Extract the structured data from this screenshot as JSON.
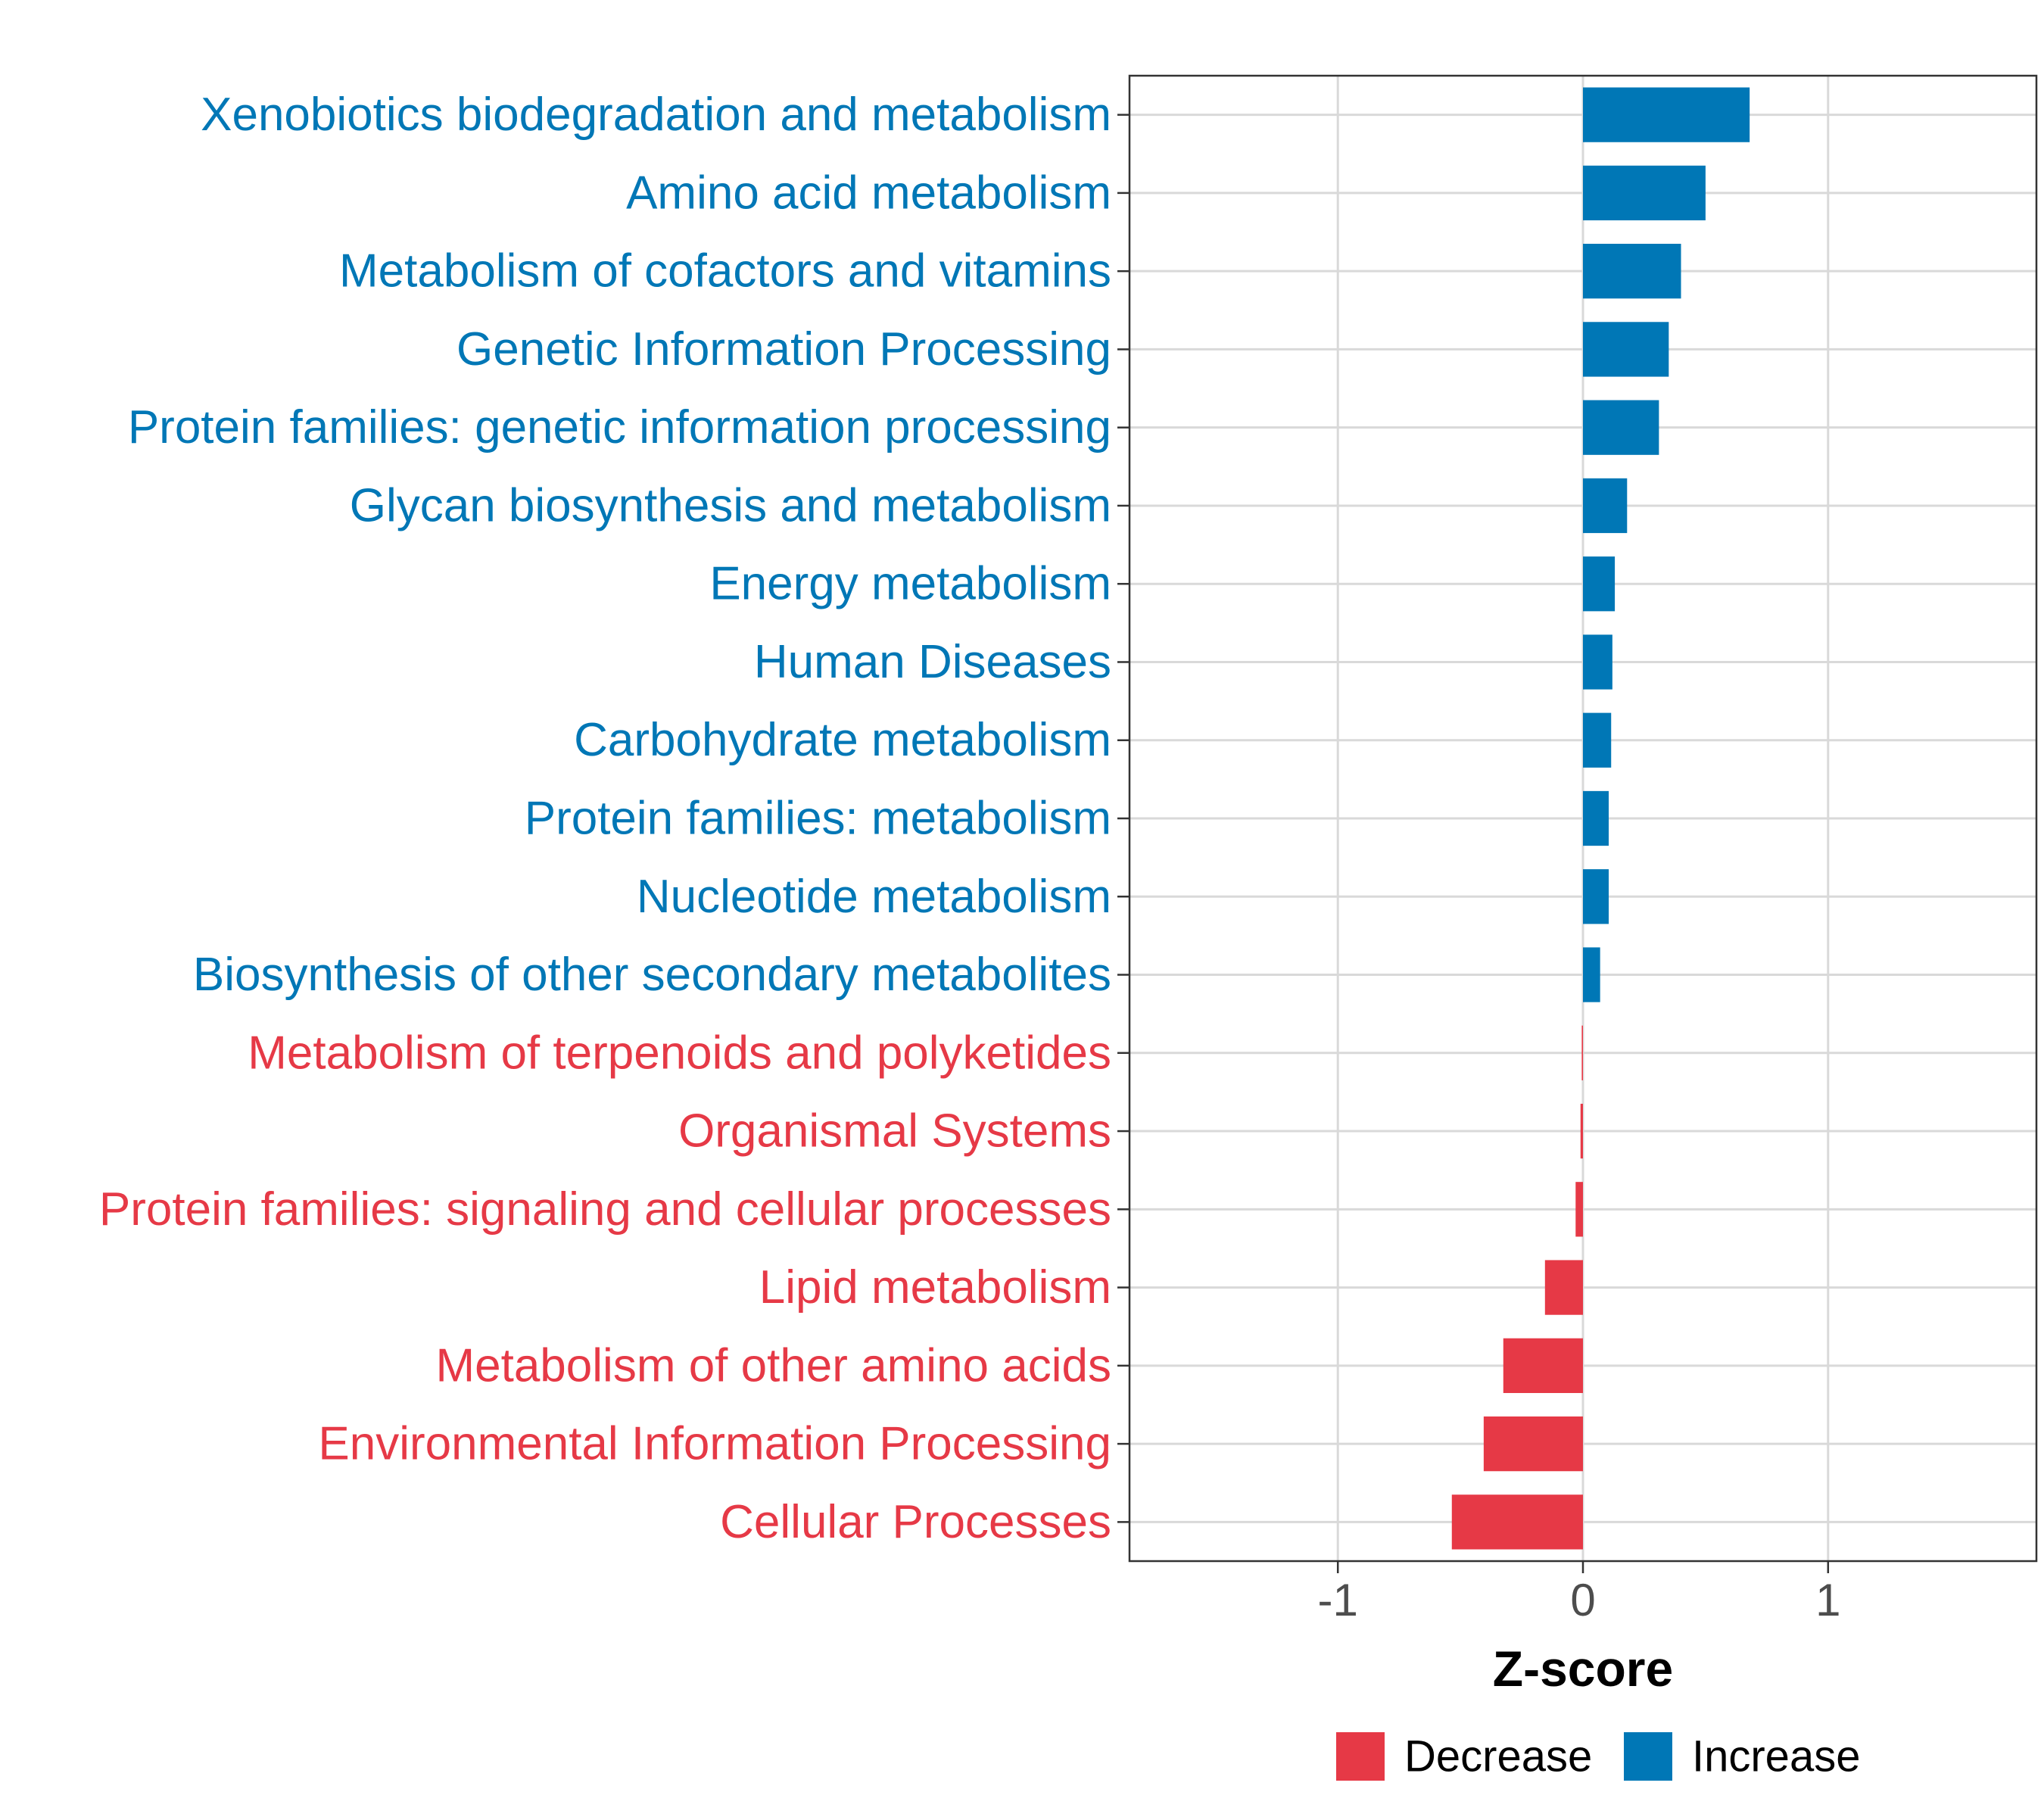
{
  "chart_data": {
    "type": "bar",
    "orientation": "horizontal",
    "title": "",
    "xlabel": "Z-score",
    "ylabel": "",
    "xlim": [
      -1.85,
      1.85
    ],
    "xticks": [
      -1,
      0,
      1
    ],
    "xtick_labels": [
      "-1",
      "0",
      "1"
    ],
    "grid": true,
    "legend_position": "bottom",
    "colors": {
      "Decrease": "#E63946",
      "Increase": "#0077B6"
    },
    "legend": [
      {
        "key": "Decrease",
        "label": "Decrease"
      },
      {
        "key": "Increase",
        "label": "Increase"
      }
    ],
    "categories": [
      "Xenobiotics biodegradation and metabolism",
      "Amino acid metabolism",
      "Metabolism of cofactors and vitamins",
      "Genetic Information Processing",
      "Protein families: genetic information processing",
      "Glycan biosynthesis and metabolism",
      "Energy metabolism",
      "Human Diseases",
      "Carbohydrate metabolism",
      "Protein families: metabolism",
      "Nucleotide metabolism",
      "Biosynthesis of other secondary metabolites",
      "Metabolism of terpenoids and polyketides",
      "Organismal Systems",
      "Protein families: signaling and cellular processes",
      "Lipid metabolism",
      "Metabolism of other amino acids",
      "Environmental Information Processing",
      "Cellular Processes"
    ],
    "values": [
      0.68,
      0.5,
      0.4,
      0.35,
      0.31,
      0.18,
      0.13,
      0.12,
      0.115,
      0.105,
      0.105,
      0.07,
      -0.005,
      -0.01,
      -0.03,
      -0.155,
      -0.325,
      -0.405,
      -0.535
    ],
    "direction": [
      "Increase",
      "Increase",
      "Increase",
      "Increase",
      "Increase",
      "Increase",
      "Increase",
      "Increase",
      "Increase",
      "Increase",
      "Increase",
      "Increase",
      "Decrease",
      "Decrease",
      "Decrease",
      "Decrease",
      "Decrease",
      "Decrease",
      "Decrease"
    ]
  }
}
